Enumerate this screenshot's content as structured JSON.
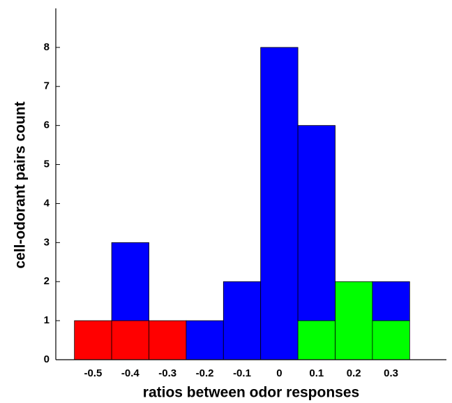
{
  "chart_data": {
    "type": "bar",
    "xlabel": "ratios between odor responses",
    "ylabel": "cell-odorant pairs count",
    "categories": [
      "-0.5",
      "-0.4",
      "-0.3",
      "-0.2",
      "-0.1",
      "0",
      "0.1",
      "0.2",
      "0.3"
    ],
    "series": [
      {
        "color": "#ff0000",
        "values": [
          1,
          1,
          1,
          0,
          0,
          0,
          0,
          0,
          0
        ]
      },
      {
        "color": "#00ff00",
        "values": [
          0,
          0,
          0,
          0,
          0,
          0,
          1,
          2,
          1
        ]
      },
      {
        "color": "#0000ff",
        "values": [
          0,
          2,
          0,
          1,
          2,
          8,
          5,
          0,
          1
        ]
      }
    ],
    "stacked": true,
    "ylim": [
      0,
      9
    ],
    "yticks": [
      0,
      1,
      2,
      3,
      4,
      5,
      6,
      7,
      8
    ]
  }
}
